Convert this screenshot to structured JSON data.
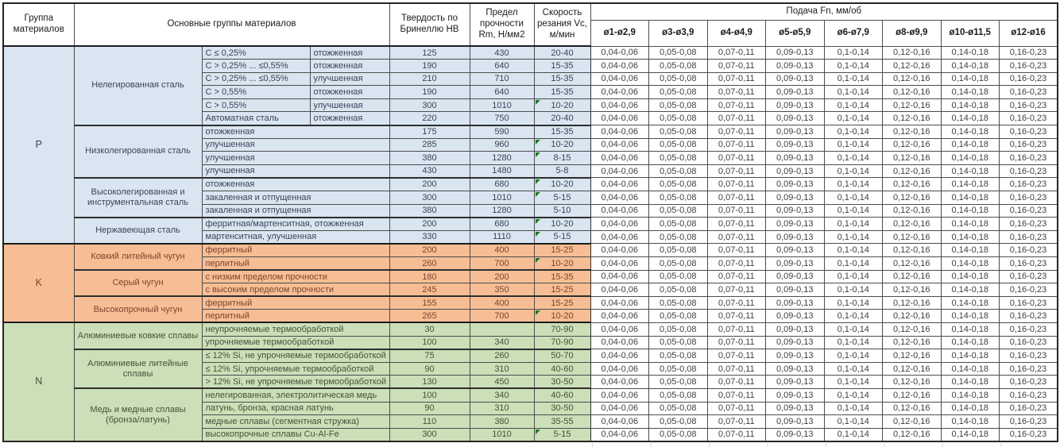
{
  "header": {
    "group": "Группа материалов",
    "materials": "Основные группы материалов",
    "hardness": "Твердость по Бринеллю HB",
    "strength": "Предел прочности Rm, Н/мм2",
    "speed": "Скорость резания Vc, м/мин",
    "feed": "Подача Fn, мм/об",
    "feed_columns": [
      "ø1-ø2,9",
      "ø3-ø3,9",
      "ø4-ø4,9",
      "ø5-ø5,9",
      "ø6-ø7,9",
      "ø8-ø9,9",
      "ø10-ø11,5",
      "ø12-ø16"
    ]
  },
  "feed_values": [
    "0,04-0,06",
    "0,05-0,08",
    "0,07-0,11",
    "0,09-0,13",
    "0,1-0,14",
    "0,12-0,16",
    "0,14-0,18",
    "0,16-0,23"
  ],
  "flag_color": "#1f7a1f",
  "groups": [
    {
      "letter": "P",
      "bg_color": "#D9E5F1",
      "text_color": "#3C4454",
      "subgroups": [
        {
          "name": "Нелегированная сталь",
          "rows": [
            {
              "detail": "C ≤ 0,25%",
              "state": "отожженная",
              "hb": "125",
              "rm": "430",
              "vc": "20-40",
              "flag": false
            },
            {
              "detail": "C > 0,25% ... ≤0,55%",
              "state": "отожженная",
              "hb": "190",
              "rm": "640",
              "vc": "15-35",
              "flag": false
            },
            {
              "detail": "C > 0,25% ... ≤0,55%",
              "state": "улучшенная",
              "hb": "210",
              "rm": "710",
              "vc": "15-35",
              "flag": false
            },
            {
              "detail": "C > 0,55%",
              "state": "отожженная",
              "hb": "190",
              "rm": "640",
              "vc": "15-35",
              "flag": false
            },
            {
              "detail": "C > 0,55%",
              "state": "улучшенная",
              "hb": "300",
              "rm": "1010",
              "vc": "10-20",
              "flag": true
            },
            {
              "detail": "Автоматная сталь",
              "state": "отожженная",
              "hb": "220",
              "rm": "750",
              "vc": "20-40",
              "flag": false
            }
          ]
        },
        {
          "name": "Низколегированная сталь",
          "rows": [
            {
              "detail": "отожженная",
              "hb": "175",
              "rm": "590",
              "vc": "15-35",
              "flag": false
            },
            {
              "detail": "улучшенная",
              "hb": "285",
              "rm": "960",
              "vc": "10-20",
              "flag": true
            },
            {
              "detail": "улучшенная",
              "hb": "380",
              "rm": "1280",
              "vc": "8-15",
              "flag": true
            },
            {
              "detail": "улучшенная",
              "hb": "430",
              "rm": "1480",
              "vc": "5-8",
              "flag": false
            }
          ]
        },
        {
          "name": "Высоколегированная и инструментальная сталь",
          "rows": [
            {
              "detail": "отожженная",
              "hb": "200",
              "rm": "680",
              "vc": "10-20",
              "flag": true
            },
            {
              "detail": "закаленная и отпущенная",
              "hb": "300",
              "rm": "1010",
              "vc": "5-15",
              "flag": true
            },
            {
              "detail": "закаленная и отпущенная",
              "hb": "380",
              "rm": "1280",
              "vc": "5-10",
              "flag": false
            }
          ]
        },
        {
          "name": "Нержавеющая сталь",
          "rows": [
            {
              "detail": "ферритная/мартенситная, отожженная",
              "hb": "200",
              "rm": "680",
              "vc": "10-20",
              "flag": true
            },
            {
              "detail": "мартенситная, улучшенная",
              "hb": "330",
              "rm": "1110",
              "vc": "5-15",
              "flag": true
            }
          ]
        }
      ]
    },
    {
      "letter": "K",
      "bg_color": "#F7BE95",
      "text_color": "#7A452B",
      "subgroups": [
        {
          "name": "Ковкий литейный чугун",
          "rows": [
            {
              "detail": "ферритный",
              "hb": "200",
              "rm": "400",
              "vc": "15-25",
              "flag": false
            },
            {
              "detail": "перлитный",
              "hb": "260",
              "rm": "700",
              "vc": "10-20",
              "flag": true
            }
          ]
        },
        {
          "name": "Серый чугун",
          "rows": [
            {
              "detail": "с низким пределом прочности",
              "hb": "180",
              "rm": "200",
              "vc": "15-35",
              "flag": false
            },
            {
              "detail": "с высоким пределом прочности",
              "hb": "245",
              "rm": "350",
              "vc": "15-25",
              "flag": false
            }
          ]
        },
        {
          "name": "Высокопрочный чугун",
          "rows": [
            {
              "detail": "ферритный",
              "hb": "155",
              "rm": "400",
              "vc": "15-25",
              "flag": false
            },
            {
              "detail": "перлитный",
              "hb": "265",
              "rm": "700",
              "vc": "10-20",
              "flag": true
            }
          ]
        }
      ]
    },
    {
      "letter": "N",
      "bg_color": "#CBDFB8",
      "text_color": "#41553A",
      "subgroups": [
        {
          "name": "Алюминиевые ковкие сплавы",
          "rows": [
            {
              "detail": "неупрочняемые термообработкой",
              "hb": "30",
              "rm": "",
              "vc": "70-90",
              "flag": false
            },
            {
              "detail": "упрочняемые термообработкой",
              "hb": "100",
              "rm": "340",
              "vc": "70-90",
              "flag": false
            }
          ]
        },
        {
          "name": "Алюминиевые литейные сплавы",
          "rows": [
            {
              "detail": "≤ 12% Si, не упрочняемые термообработкой",
              "hb": "75",
              "rm": "260",
              "vc": "50-70",
              "flag": false
            },
            {
              "detail": "≤ 12% Si, упрочняемые термообработкой",
              "hb": "90",
              "rm": "310",
              "vc": "40-60",
              "flag": false
            },
            {
              "detail": "> 12% Si, не упрочняемые термообработкой",
              "hb": "130",
              "rm": "450",
              "vc": "30-50",
              "flag": false
            }
          ]
        },
        {
          "name": "Медь и медные сплавы (бронза/латунь)",
          "rows": [
            {
              "detail": "нелегированная, электролитическая медь",
              "hb": "100",
              "rm": "340",
              "vc": "40-60",
              "flag": false
            },
            {
              "detail": "латунь, бронза, красная латунь",
              "hb": "90",
              "rm": "310",
              "vc": "30-50",
              "flag": false
            },
            {
              "detail": "медные сплавы (сегментная стружка)",
              "hb": "110",
              "rm": "380",
              "vc": "35-55",
              "flag": false
            },
            {
              "detail": "высокопрочные сплавы Cu-Al-Fe",
              "hb": "300",
              "rm": "1010",
              "vc": "5-15",
              "flag": true
            }
          ]
        }
      ]
    }
  ]
}
